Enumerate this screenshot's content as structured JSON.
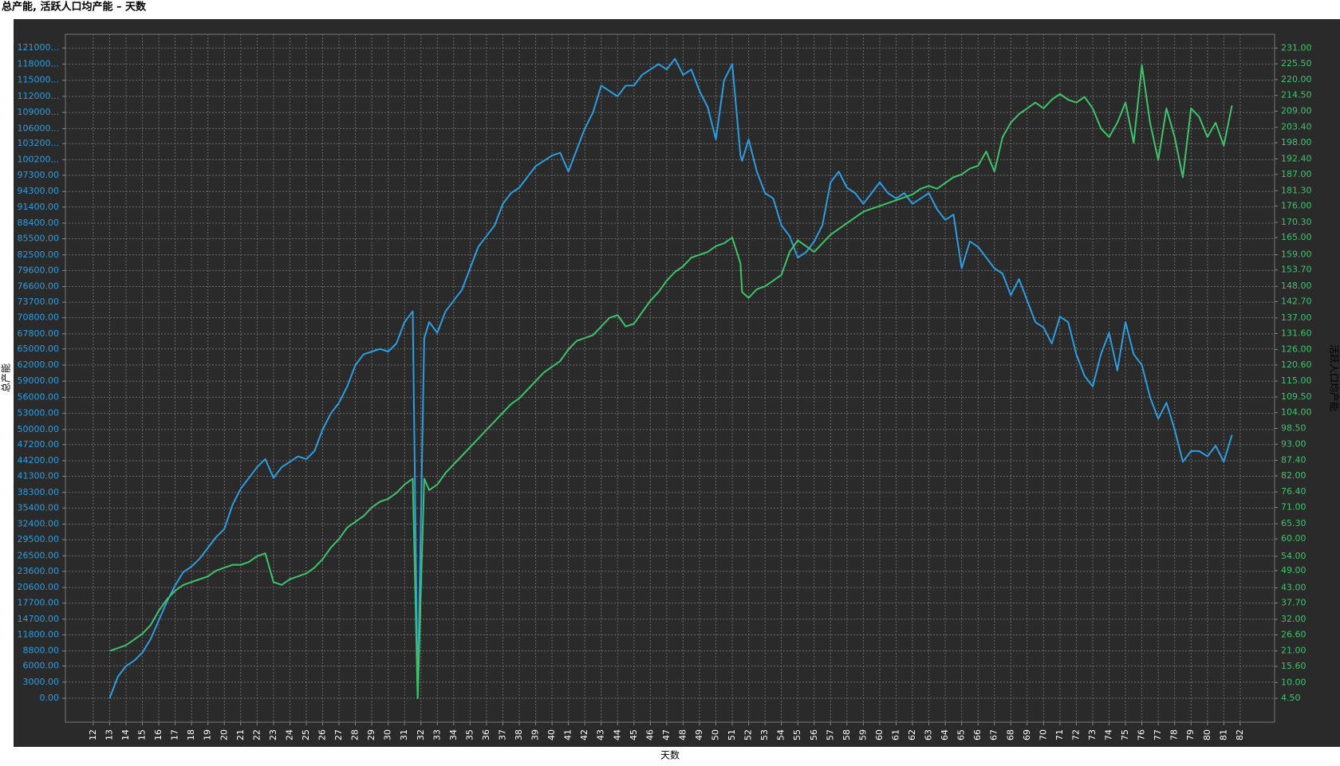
{
  "chart_data": {
    "type": "line",
    "title": "总产能, 活跃人口均产能 – 天数",
    "x_label": "天数",
    "y_label": "总产能",
    "y2_label": "活跃人口均产能",
    "grid": true,
    "x": [
      13,
      13.5,
      14,
      14.5,
      15,
      15.5,
      16,
      16.5,
      17,
      17.5,
      18,
      18.5,
      19,
      19.5,
      20,
      20.5,
      21,
      21.5,
      22,
      22.5,
      23,
      23.5,
      24,
      24.5,
      25,
      25.5,
      26,
      26.5,
      27,
      27.5,
      28,
      28.5,
      29,
      29.5,
      30,
      30.5,
      31,
      31.5,
      31.8,
      32.2,
      32.5,
      33,
      33.5,
      34,
      34.5,
      35,
      35.5,
      36,
      36.5,
      37,
      37.5,
      38,
      38.5,
      39,
      39.5,
      40,
      40.5,
      41,
      41.5,
      42,
      42.5,
      43,
      43.5,
      44,
      44.5,
      45,
      45.5,
      46,
      46.5,
      47,
      47.5,
      48,
      48.5,
      49,
      49.5,
      50,
      50.5,
      51,
      51.5,
      51.6,
      52,
      52.5,
      53,
      53.5,
      54,
      54.5,
      55,
      55.5,
      56,
      56.5,
      57,
      57.5,
      58,
      58.5,
      59,
      59.5,
      60,
      60.5,
      61,
      61.5,
      62,
      62.5,
      63,
      63.5,
      64,
      64.5,
      65,
      65.5,
      66,
      66.5,
      67,
      67.5,
      68,
      68.5,
      69,
      69.5,
      70,
      70.5,
      71,
      71.5,
      72,
      72.5,
      73,
      73.5,
      74,
      74.5,
      75,
      75.5,
      76,
      76.5,
      77,
      77.5,
      78,
      78.5,
      79,
      79.5,
      80,
      80.5,
      81,
      81.5
    ],
    "series": [
      {
        "name": "总产能",
        "color": "#2b9ee2",
        "axis": "y",
        "values": [
          0,
          4000,
          6000,
          7000,
          8500,
          11000,
          14500,
          18000,
          21000,
          23500,
          24500,
          26000,
          28000,
          30000,
          31500,
          36000,
          39000,
          41000,
          43000,
          44500,
          41000,
          43000,
          44000,
          45000,
          44500,
          46000,
          50000,
          53000,
          55000,
          58000,
          62000,
          64000,
          64500,
          65000,
          64500,
          66000,
          70000,
          72000,
          0,
          67000,
          70000,
          68000,
          72000,
          74000,
          76000,
          80000,
          84000,
          86000,
          88000,
          92000,
          94000,
          95000,
          97000,
          99000,
          100000,
          101000,
          101500,
          98000,
          102000,
          106000,
          109000,
          114000,
          113000,
          112000,
          114000,
          114000,
          116000,
          117000,
          118000,
          117000,
          119000,
          116000,
          117000,
          113000,
          110000,
          104000,
          115000,
          118000,
          101000,
          100000,
          104000,
          98000,
          94000,
          93000,
          88000,
          86000,
          82000,
          83000,
          85000,
          88000,
          96000,
          98000,
          95000,
          94000,
          92000,
          94000,
          96000,
          94000,
          93000,
          94000,
          92000,
          93000,
          94000,
          91000,
          89000,
          90000,
          80000,
          85000,
          84000,
          82000,
          80000,
          79000,
          75000,
          78000,
          74000,
          70000,
          69000,
          66000,
          71000,
          70000,
          64000,
          60000,
          58000,
          64000,
          68000,
          61000,
          70000,
          64000,
          62000,
          56000,
          52000,
          55000,
          50000,
          44000,
          46000,
          46000,
          45000,
          47000,
          44000,
          49000
        ]
      },
      {
        "name": "活跃人口均产能",
        "color": "#3dc46b",
        "axis": "y2",
        "values": [
          21,
          22,
          23,
          25,
          27,
          30,
          35,
          39,
          42,
          44,
          45,
          46,
          47,
          49,
          50,
          51,
          51,
          52,
          54,
          55,
          45,
          44,
          46,
          47,
          48,
          50,
          53,
          57,
          60,
          64,
          66,
          68,
          71,
          73,
          74,
          76,
          79,
          81,
          4.5,
          81,
          77,
          79,
          83,
          86,
          89,
          92,
          95,
          98,
          101,
          104,
          107,
          109,
          112,
          115,
          118,
          120,
          122,
          126,
          129,
          130,
          131,
          134,
          137,
          138,
          134,
          135,
          139,
          143,
          146,
          150,
          153,
          155,
          158,
          159,
          160,
          162,
          163,
          165,
          156,
          146,
          144,
          147,
          148,
          150,
          152,
          160,
          164,
          162,
          160,
          163,
          166,
          168,
          170,
          172,
          174,
          175,
          176,
          177,
          178,
          179,
          180,
          182,
          183,
          182,
          184,
          186,
          187,
          189,
          190,
          195,
          188,
          200,
          205,
          208,
          210,
          212,
          210,
          213,
          215,
          213,
          212,
          214,
          210,
          203,
          200,
          205,
          212,
          198,
          225,
          205,
          192,
          210,
          200,
          186,
          210,
          207,
          200,
          205,
          197,
          211
        ]
      }
    ],
    "xlim": [
      10.3,
      84.1
    ],
    "xticks": [
      12,
      13,
      14,
      15,
      16,
      17,
      18,
      19,
      20,
      21,
      22,
      23,
      24,
      25,
      26,
      27,
      28,
      29,
      30,
      31,
      32,
      33,
      34,
      35,
      36,
      37,
      38,
      39,
      40,
      41,
      42,
      43,
      44,
      45,
      46,
      47,
      48,
      49,
      50,
      51,
      52,
      53,
      54,
      55,
      56,
      57,
      58,
      59,
      60,
      61,
      62,
      63,
      64,
      65,
      66,
      67,
      68,
      69,
      70,
      71,
      72,
      73,
      74,
      75,
      76,
      77,
      78,
      79,
      80,
      81,
      82
    ],
    "ylim": [
      -4450,
      123550
    ],
    "yticks": [
      {
        "value": 0,
        "label": "0.00"
      },
      {
        "value": 3000,
        "label": "3000.00"
      },
      {
        "value": 6000,
        "label": "6000.00"
      },
      {
        "value": 8800,
        "label": "8800.00"
      },
      {
        "value": 11800,
        "label": "11800.00"
      },
      {
        "value": 14700,
        "label": "14700.00"
      },
      {
        "value": 17700,
        "label": "17700.00"
      },
      {
        "value": 20600,
        "label": "20600.00"
      },
      {
        "value": 23600,
        "label": "23600.00"
      },
      {
        "value": 26500,
        "label": "26500.00"
      },
      {
        "value": 29500,
        "label": "29500.00"
      },
      {
        "value": 32400,
        "label": "32400.00"
      },
      {
        "value": 35400,
        "label": "35400.00"
      },
      {
        "value": 38300,
        "label": "38300.00"
      },
      {
        "value": 41300,
        "label": "41300.00"
      },
      {
        "value": 44200,
        "label": "44200.00"
      },
      {
        "value": 47200,
        "label": "47200.00"
      },
      {
        "value": 50000,
        "label": "50000.00"
      },
      {
        "value": 53000,
        "label": "53000.00"
      },
      {
        "value": 56000,
        "label": "56000.00"
      },
      {
        "value": 59000,
        "label": "59000.00"
      },
      {
        "value": 62000,
        "label": "62000.00"
      },
      {
        "value": 65000,
        "label": "65000.00"
      },
      {
        "value": 67800,
        "label": "67800.00"
      },
      {
        "value": 70800,
        "label": "70800.00"
      },
      {
        "value": 73700,
        "label": "73700.00"
      },
      {
        "value": 76600,
        "label": "76600.00"
      },
      {
        "value": 79600,
        "label": "79600.00"
      },
      {
        "value": 82500,
        "label": "82500.00"
      },
      {
        "value": 85500,
        "label": "85500.00"
      },
      {
        "value": 88400,
        "label": "88400.00"
      },
      {
        "value": 91400,
        "label": "91400.00"
      },
      {
        "value": 94300,
        "label": "94300.00"
      },
      {
        "value": 97300,
        "label": "97300.00"
      },
      {
        "value": 100200,
        "label": "100200..."
      },
      {
        "value": 103200,
        "label": "103200..."
      },
      {
        "value": 106000,
        "label": "106000..."
      },
      {
        "value": 109000,
        "label": "109000..."
      },
      {
        "value": 112000,
        "label": "112000..."
      },
      {
        "value": 115000,
        "label": "115000..."
      },
      {
        "value": 118000,
        "label": "118000..."
      },
      {
        "value": 121000,
        "label": "121000..."
      }
    ],
    "y2lim": [
      -3.8,
      235.8
    ],
    "y2ticks": [
      {
        "value": 4.5,
        "label": "4.50"
      },
      {
        "value": 10,
        "label": "10.00"
      },
      {
        "value": 15.6,
        "label": "15.60"
      },
      {
        "value": 21,
        "label": "21.00"
      },
      {
        "value": 26.6,
        "label": "26.60"
      },
      {
        "value": 32,
        "label": "32.00"
      },
      {
        "value": 37.7,
        "label": "37.70"
      },
      {
        "value": 43,
        "label": "43.00"
      },
      {
        "value": 49,
        "label": "49.00"
      },
      {
        "value": 54,
        "label": "54.00"
      },
      {
        "value": 60,
        "label": "60.00"
      },
      {
        "value": 65.3,
        "label": "65.30"
      },
      {
        "value": 71,
        "label": "71.00"
      },
      {
        "value": 76.4,
        "label": "76.40"
      },
      {
        "value": 82,
        "label": "82.00"
      },
      {
        "value": 87.4,
        "label": "87.40"
      },
      {
        "value": 93,
        "label": "93.00"
      },
      {
        "value": 98.5,
        "label": "98.50"
      },
      {
        "value": 104,
        "label": "104.00"
      },
      {
        "value": 109.5,
        "label": "109.50"
      },
      {
        "value": 115,
        "label": "115.00"
      },
      {
        "value": 120.6,
        "label": "120.60"
      },
      {
        "value": 126,
        "label": "126.00"
      },
      {
        "value": 131.6,
        "label": "131.60"
      },
      {
        "value": 137,
        "label": "137.00"
      },
      {
        "value": 142.7,
        "label": "142.70"
      },
      {
        "value": 148,
        "label": "148.00"
      },
      {
        "value": 153.7,
        "label": "153.70"
      },
      {
        "value": 159,
        "label": "159.00"
      },
      {
        "value": 165,
        "label": "165.00"
      },
      {
        "value": 170.3,
        "label": "170.30"
      },
      {
        "value": 176,
        "label": "176.00"
      },
      {
        "value": 181.3,
        "label": "181.30"
      },
      {
        "value": 187,
        "label": "187.00"
      },
      {
        "value": 192.4,
        "label": "192.40"
      },
      {
        "value": 198,
        "label": "198.00"
      },
      {
        "value": 203.4,
        "label": "203.40"
      },
      {
        "value": 209,
        "label": "209.00"
      },
      {
        "value": 214.5,
        "label": "214.50"
      },
      {
        "value": 220,
        "label": "220.00"
      },
      {
        "value": 225.5,
        "label": "225.50"
      },
      {
        "value": 231,
        "label": "231.00"
      }
    ]
  }
}
